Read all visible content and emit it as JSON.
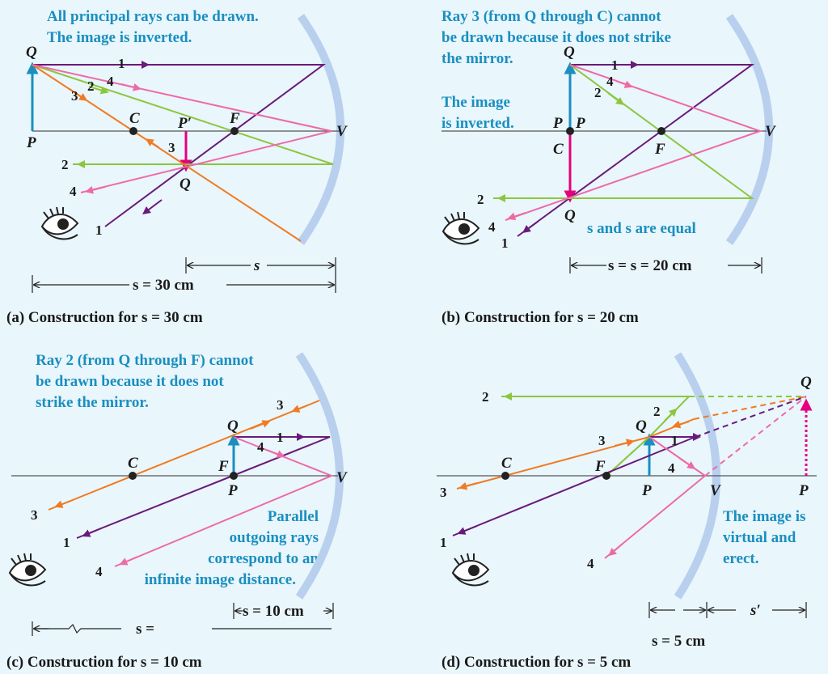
{
  "panel_a": {
    "note_line1": "All principal rays can be drawn.",
    "note_line2": "The image is inverted.",
    "label_Q": "Q",
    "label_P": "P",
    "label_C": "C",
    "label_Pprime": "P′",
    "label_F": "F",
    "label_V": "V",
    "label_Qimg": "Q",
    "ray_labels": [
      "1",
      "2",
      "3",
      "4",
      "3",
      "2",
      "4",
      "1"
    ],
    "dim_s_small": "s",
    "dim_s": "s = 30 cm",
    "caption_tag": "(a)",
    "caption_text": "Construction for",
    "caption_value": "s = 30 cm"
  },
  "panel_b": {
    "note_line1": "Ray 3 (from Q through C) cannot",
    "note_line2": "be drawn because it does not strike",
    "note_line3": "the mirror.",
    "note2_line1": "The image",
    "note2_line2": "is inverted.",
    "note3": "s and s  are equal",
    "label_Q": "Q",
    "label_P": "P",
    "label_P2": "P",
    "label_C": "C",
    "label_F": "F",
    "label_V": "V",
    "label_Qimg": "Q",
    "ray_labels": [
      "1",
      "4",
      "2",
      "2",
      "4",
      "1"
    ],
    "dim_s": "s = s  = 20 cm",
    "caption_tag": "(b)",
    "caption_text": "Construction for",
    "caption_value": "s = 20 cm"
  },
  "panel_c": {
    "note_line1": "Ray 2 (from Q through F) cannot",
    "note_line2": "be drawn because it does not",
    "note_line3": "strike the mirror.",
    "note2_line1": "Parallel",
    "note2_line2": "outgoing rays",
    "note2_line3": "correspond to an",
    "note2_line4": "infinite image distance.",
    "label_Q": "Q",
    "label_F": "F",
    "label_P": "P",
    "label_C": "C",
    "label_V": "V",
    "ray_labels": [
      "3",
      "1",
      "4",
      "3",
      "1",
      "4"
    ],
    "dim_s_small": "s = 10 cm",
    "dim_s_prime": "s  =",
    "caption_tag": "(c)",
    "caption_text": "Construction for",
    "caption_value": "s = 10 cm"
  },
  "panel_d": {
    "note_line1": "The image is",
    "note_line2": "virtual and",
    "note_line3": "erect.",
    "label_Q": "Q",
    "label_Qimg": "Q",
    "label_C": "C",
    "label_F": "F",
    "label_P": "P",
    "label_V": "V",
    "label_Pimg": "P",
    "ray_labels": [
      "2",
      "2",
      "3",
      "1",
      "4",
      "3",
      "1",
      "4"
    ],
    "dim_s": "s = 5 cm",
    "dim_s_prime": "s′",
    "caption_tag": "(d)",
    "caption_text": "Construction for",
    "caption_value": "s = 5 cm"
  },
  "colors": {
    "ray1": "#6a1a7a",
    "ray2": "#8cc63f",
    "ray3": "#f07b22",
    "ray4": "#ee6aa7",
    "object": "#1a8fc0",
    "image": "#e6007e",
    "mirror": "#b8d0ee",
    "axis": "#555555"
  }
}
